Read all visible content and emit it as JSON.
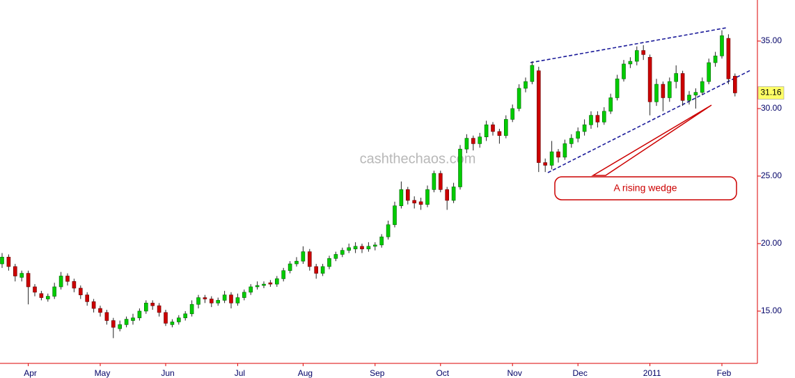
{
  "chart_data": {
    "type": "candlestick",
    "categories": [
      null,
      null,
      null,
      null,
      "Apr",
      null,
      null,
      null,
      null,
      null,
      null,
      null,
      null,
      null,
      null,
      "May",
      null,
      null,
      null,
      null,
      null,
      null,
      null,
      null,
      null,
      "Jun",
      null,
      null,
      null,
      null,
      null,
      null,
      null,
      null,
      null,
      null,
      "Jul",
      null,
      null,
      null,
      null,
      null,
      null,
      null,
      null,
      null,
      "Aug",
      null,
      null,
      null,
      null,
      null,
      null,
      null,
      null,
      null,
      null,
      "Sep",
      null,
      null,
      null,
      null,
      null,
      null,
      null,
      null,
      null,
      "Oct",
      null,
      null,
      null,
      null,
      null,
      null,
      null,
      null,
      null,
      null,
      "Nov",
      null,
      null,
      null,
      null,
      null,
      null,
      null,
      null,
      null,
      "Dec",
      null,
      null,
      null,
      null,
      null,
      null,
      null,
      null,
      null,
      null,
      "2011",
      null,
      null,
      null,
      null,
      null,
      null,
      null,
      null,
      null,
      null,
      "Feb",
      null,
      null
    ],
    "open": [
      18.5,
      19.0,
      18.3,
      17.5,
      17.8,
      16.8,
      16.3,
      15.9,
      16.1,
      16.8,
      17.6,
      17.2,
      16.7,
      16.2,
      15.7,
      15.2,
      14.9,
      14.3,
      13.7,
      14.0,
      14.3,
      14.5,
      15.0,
      15.6,
      15.4,
      14.9,
      14.0,
      14.2,
      14.5,
      14.8,
      15.5,
      16.0,
      15.9,
      15.6,
      15.8,
      16.2,
      15.6,
      16.0,
      16.4,
      16.8,
      16.9,
      17.1,
      17.0,
      17.4,
      18.0,
      18.5,
      18.7,
      19.4,
      18.3,
      17.8,
      18.3,
      18.9,
      19.2,
      19.5,
      19.6,
      19.8,
      19.6,
      19.8,
      19.9,
      20.5,
      21.4,
      22.8,
      24.0,
      23.2,
      23.1,
      22.9,
      24.0,
      25.2,
      24.0,
      23.2,
      24.2,
      27.0,
      27.8,
      27.4,
      27.9,
      28.8,
      28.3,
      28.0,
      29.2,
      30.0,
      31.5,
      32.0,
      32.8,
      26.0,
      25.8,
      26.8,
      26.4,
      27.4,
      27.8,
      28.3,
      28.8,
      29.5,
      29.0,
      29.8,
      30.8,
      32.2,
      33.3,
      33.5,
      34.3,
      33.8,
      30.5,
      31.8,
      30.8,
      32.0,
      32.6,
      30.6,
      31.0,
      31.2,
      32.0,
      33.4,
      33.9,
      35.2,
      32.4
    ],
    "high": [
      19.3,
      19.2,
      18.5,
      18.0,
      18.0,
      17.0,
      16.5,
      16.3,
      17.1,
      17.9,
      17.8,
      17.4,
      16.9,
      16.4,
      15.9,
      15.4,
      15.1,
      14.5,
      14.3,
      14.6,
      14.8,
      15.2,
      15.8,
      15.8,
      15.6,
      15.1,
      14.4,
      14.7,
      15.0,
      15.8,
      16.2,
      16.2,
      16.1,
      16.0,
      16.5,
      16.4,
      16.3,
      16.6,
      17.0,
      17.2,
      17.2,
      17.3,
      17.6,
      18.2,
      18.7,
      19.0,
      19.8,
      19.6,
      18.5,
      18.5,
      19.1,
      19.4,
      19.7,
      20.0,
      20.1,
      20.0,
      20.1,
      20.1,
      20.7,
      21.7,
      23.1,
      24.6,
      24.2,
      23.5,
      23.4,
      24.3,
      25.4,
      25.4,
      24.2,
      24.5,
      27.3,
      28.1,
      28.0,
      28.2,
      29.1,
      29.0,
      28.5,
      29.5,
      30.3,
      31.8,
      32.3,
      33.5,
      33.1,
      26.3,
      27.6,
      27.0,
      27.7,
      28.1,
      28.6,
      29.2,
      29.8,
      29.8,
      30.1,
      31.1,
      32.5,
      33.6,
      33.8,
      34.6,
      34.7,
      34.0,
      32.2,
      32.0,
      32.3,
      33.2,
      32.8,
      31.3,
      31.5,
      32.3,
      33.7,
      34.2,
      35.8,
      35.5,
      32.6
    ],
    "low": [
      18.2,
      18.0,
      17.2,
      17.2,
      15.5,
      16.1,
      15.8,
      15.7,
      15.9,
      16.6,
      16.9,
      16.4,
      15.9,
      15.4,
      14.9,
      14.6,
      14.0,
      13.0,
      13.5,
      13.8,
      14.0,
      14.3,
      14.8,
      15.1,
      14.6,
      13.9,
      13.8,
      14.0,
      14.3,
      14.6,
      15.2,
      15.6,
      15.3,
      15.4,
      15.6,
      15.2,
      15.4,
      15.8,
      16.2,
      16.6,
      16.7,
      16.8,
      16.8,
      17.2,
      17.8,
      18.3,
      18.5,
      18.0,
      17.4,
      17.6,
      18.1,
      18.7,
      19.0,
      19.3,
      19.3,
      19.3,
      19.4,
      19.5,
      19.7,
      20.3,
      21.2,
      22.6,
      22.9,
      22.6,
      22.5,
      22.7,
      23.8,
      23.8,
      22.5,
      23.0,
      24.0,
      26.7,
      26.9,
      27.1,
      27.6,
      28.0,
      27.4,
      27.8,
      29.0,
      29.8,
      31.2,
      31.8,
      25.3,
      25.3,
      25.5,
      26.0,
      26.2,
      27.1,
      27.5,
      28.0,
      28.5,
      28.6,
      28.8,
      29.6,
      30.6,
      32.0,
      33.0,
      33.2,
      33.6,
      29.5,
      30.2,
      29.8,
      30.5,
      31.5,
      30.2,
      30.3,
      30.0,
      31.0,
      31.8,
      33.1,
      33.7,
      31.8,
      30.9
    ],
    "close": [
      19.0,
      18.3,
      17.6,
      17.8,
      16.8,
      16.4,
      16.0,
      16.1,
      16.8,
      17.6,
      17.2,
      16.7,
      16.2,
      15.7,
      15.2,
      14.9,
      14.3,
      13.8,
      14.0,
      14.4,
      14.5,
      15.0,
      15.6,
      15.4,
      14.9,
      14.1,
      14.2,
      14.5,
      14.8,
      15.5,
      16.0,
      15.9,
      15.6,
      15.8,
      16.2,
      15.6,
      16.0,
      16.4,
      16.8,
      16.9,
      17.0,
      17.0,
      17.4,
      18.0,
      18.5,
      18.7,
      19.4,
      18.3,
      17.8,
      18.3,
      18.9,
      19.2,
      19.5,
      19.7,
      19.8,
      19.6,
      19.8,
      19.9,
      20.5,
      21.4,
      22.8,
      24.0,
      23.2,
      23.0,
      22.9,
      24.0,
      25.2,
      24.0,
      23.2,
      24.2,
      27.0,
      27.8,
      27.4,
      27.9,
      28.8,
      28.3,
      28.0,
      29.2,
      30.0,
      31.5,
      32.0,
      33.2,
      26.0,
      25.8,
      26.8,
      26.4,
      27.4,
      27.8,
      28.3,
      28.8,
      29.5,
      29.0,
      29.8,
      30.8,
      32.2,
      33.3,
      33.5,
      34.3,
      34.0,
      30.5,
      31.8,
      30.8,
      32.0,
      32.6,
      30.6,
      31.0,
      31.2,
      32.0,
      33.4,
      33.9,
      35.4,
      32.2,
      31.16
    ],
    "up_color": "#00cc00",
    "down_color": "#cc0000",
    "axis_color": "#dd0000",
    "ylim": [
      11.13,
      38.04
    ],
    "yticks": [
      {
        "value": 15,
        "label": "15.00"
      },
      {
        "value": 20,
        "label": "20.00"
      },
      {
        "value": 25,
        "label": "25.00"
      },
      {
        "value": 30,
        "label": "30.00"
      },
      {
        "value": 35,
        "label": "35.00"
      }
    ],
    "last_price": 31.16,
    "watermark": "cashthechaos.com",
    "annotation": "A rising wedge"
  }
}
